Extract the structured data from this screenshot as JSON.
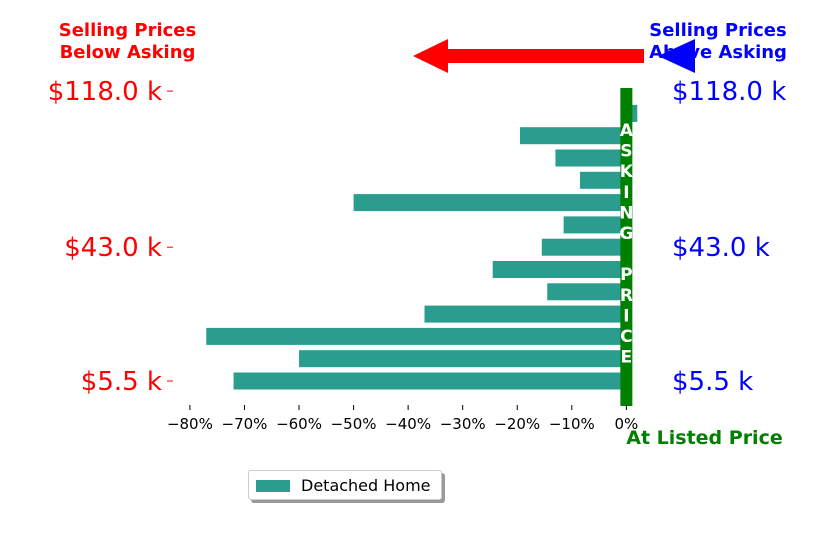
{
  "header": {
    "left_line1": "Selling Prices",
    "left_line2": "Below Asking",
    "right_line1": "Selling Prices",
    "right_line2": "Above Asking",
    "listed_label": "At Listed Price",
    "asking_letters": [
      "A",
      "S",
      "K",
      "I",
      "N",
      "G",
      "",
      "P",
      "R",
      "I",
      "C",
      "E"
    ]
  },
  "colors": {
    "bar": "#2a9d8f",
    "left": "#ff0000",
    "right": "#0000ff",
    "asking": "#008000",
    "arrow_left": "#ff0000",
    "arrow_right": "#0000ff"
  },
  "chart_data": {
    "type": "bar",
    "orientation": "horizontal",
    "series": [
      {
        "name": "Detached Home",
        "values": [
          -72,
          -60,
          -77,
          -37,
          -14.5,
          -24.5,
          -15.5,
          -11.5,
          -50,
          -8.5,
          -13,
          -19.5,
          2
        ]
      }
    ],
    "xlim": [
      -82,
      2.5
    ],
    "xticks": [
      -80,
      -70,
      -60,
      -50,
      -40,
      -30,
      -20,
      -10,
      0
    ],
    "xtick_labels": [
      "−80%",
      "−70%",
      "−60%",
      "−50%",
      "−40%",
      "−30%",
      "−20%",
      "−10%",
      "0%"
    ],
    "ytick_labels": [
      {
        "index": 0,
        "label": "$5.5 k"
      },
      {
        "index": 6,
        "label": "$43.0 k"
      },
      {
        "index": 13,
        "label": "$118.0 k"
      }
    ],
    "legend": "lower-center"
  }
}
